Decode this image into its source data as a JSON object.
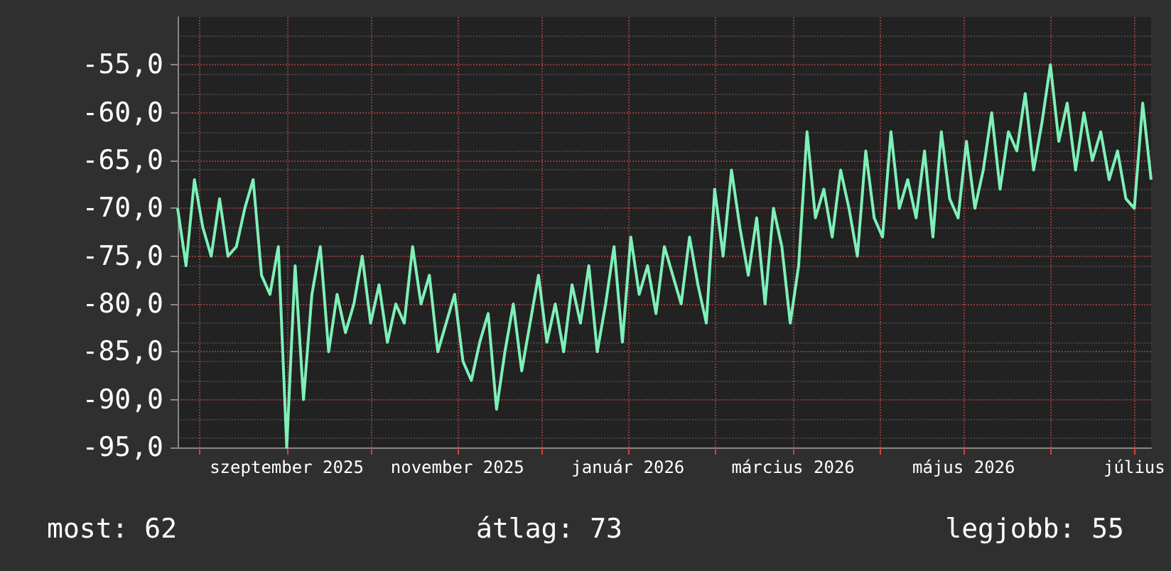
{
  "chart_data": {
    "type": "line",
    "color": "#7ef0b8",
    "grid": true,
    "marker": "none",
    "line_style": "solid",
    "xlim": [
      "2025-07-24",
      "2026-07-07"
    ],
    "xticks": [
      {
        "value": "2025-08-01",
        "label": null
      },
      {
        "value": "2025-09-01",
        "label": "szeptember 2025"
      },
      {
        "value": "2025-10-01",
        "label": null
      },
      {
        "value": "2025-11-01",
        "label": "november 2025"
      },
      {
        "value": "2025-12-01",
        "label": null
      },
      {
        "value": "2026-01-01",
        "label": "január 2026"
      },
      {
        "value": "2026-02-01",
        "label": null
      },
      {
        "value": "2026-03-01",
        "label": "március 2026"
      },
      {
        "value": "2026-04-01",
        "label": null
      },
      {
        "value": "2026-05-01",
        "label": "május 2026"
      },
      {
        "value": "2026-06-01",
        "label": null
      },
      {
        "value": "2026-07-01",
        "label": "július"
      }
    ],
    "ylim": [
      -95,
      -50
    ],
    "yticks": [
      {
        "value": -95,
        "label": "-95,0"
      },
      {
        "value": -90,
        "label": "-90,0"
      },
      {
        "value": -85,
        "label": "-85,0"
      },
      {
        "value": -80,
        "label": "-80,0"
      },
      {
        "value": -75,
        "label": "-75,0"
      },
      {
        "value": -70,
        "label": "-70,0"
      },
      {
        "value": -65,
        "label": "-65,0"
      },
      {
        "value": -60,
        "label": "-60,0"
      },
      {
        "value": -55,
        "label": "-55,0"
      }
    ],
    "annotations": [
      "most: 62",
      "átlag: 73",
      "legjobb: 55"
    ],
    "x": [
      "2025-07-24",
      "2025-07-27",
      "2025-07-30",
      "2025-08-02",
      "2025-08-05",
      "2025-08-08",
      "2025-08-11",
      "2025-08-14",
      "2025-08-17",
      "2025-08-20",
      "2025-08-23",
      "2025-08-26",
      "2025-08-29",
      "2025-09-01",
      "2025-09-04",
      "2025-09-07",
      "2025-09-10",
      "2025-09-13",
      "2025-09-16",
      "2025-09-19",
      "2025-09-22",
      "2025-09-25",
      "2025-09-28",
      "2025-10-01",
      "2025-10-04",
      "2025-10-07",
      "2025-10-10",
      "2025-10-13",
      "2025-10-16",
      "2025-10-19",
      "2025-10-22",
      "2025-10-25",
      "2025-10-28",
      "2025-10-31",
      "2025-11-03",
      "2025-11-06",
      "2025-11-09",
      "2025-11-12",
      "2025-11-15",
      "2025-11-18",
      "2025-11-21",
      "2025-11-24",
      "2025-11-27",
      "2025-11-30",
      "2025-12-03",
      "2025-12-06",
      "2025-12-09",
      "2025-12-12",
      "2025-12-15",
      "2025-12-18",
      "2025-12-21",
      "2025-12-24",
      "2025-12-27",
      "2025-12-30",
      "2026-01-02",
      "2026-01-05",
      "2026-01-08",
      "2026-01-11",
      "2026-01-14",
      "2026-01-17",
      "2026-01-20",
      "2026-01-23",
      "2026-01-26",
      "2026-01-29",
      "2026-02-01",
      "2026-02-04",
      "2026-02-07",
      "2026-02-10",
      "2026-02-13",
      "2026-02-16",
      "2026-02-19",
      "2026-02-22",
      "2026-02-25",
      "2026-02-28",
      "2026-03-03",
      "2026-03-06",
      "2026-03-09",
      "2026-03-12",
      "2026-03-15",
      "2026-03-18",
      "2026-03-21",
      "2026-03-24",
      "2026-03-27",
      "2026-03-30",
      "2026-04-02",
      "2026-04-05",
      "2026-04-08",
      "2026-04-11",
      "2026-04-14",
      "2026-04-17",
      "2026-04-20",
      "2026-04-23",
      "2026-04-26",
      "2026-04-29",
      "2026-05-02",
      "2026-05-05",
      "2026-05-08",
      "2026-05-11",
      "2026-05-14",
      "2026-05-17",
      "2026-05-20",
      "2026-05-23",
      "2026-05-26",
      "2026-05-29",
      "2026-06-01",
      "2026-06-04",
      "2026-06-07",
      "2026-06-10",
      "2026-06-13",
      "2026-06-16",
      "2026-06-19",
      "2026-06-22",
      "2026-06-25",
      "2026-06-28",
      "2026-07-01",
      "2026-07-04",
      "2026-07-07"
    ],
    "values": [
      -70,
      -76,
      -67,
      -72,
      -75,
      -69,
      -75,
      -74,
      -70,
      -67,
      -77,
      -79,
      -74,
      -95,
      -76,
      -90,
      -79,
      -74,
      -85,
      -79,
      -83,
      -80,
      -75,
      -82,
      -78,
      -84,
      -80,
      -82,
      -74,
      -80,
      -77,
      -85,
      -82,
      -79,
      -86,
      -88,
      -84,
      -81,
      -91,
      -85,
      -80,
      -87,
      -82,
      -77,
      -84,
      -80,
      -85,
      -78,
      -82,
      -76,
      -85,
      -80,
      -74,
      -84,
      -73,
      -79,
      -76,
      -81,
      -74,
      -77,
      -80,
      -73,
      -78,
      -82,
      -68,
      -75,
      -66,
      -72,
      -77,
      -71,
      -80,
      -70,
      -74,
      -82,
      -76,
      -62,
      -71,
      -68,
      -73,
      -66,
      -70,
      -75,
      -64,
      -71,
      -73,
      -62,
      -70,
      -67,
      -71,
      -64,
      -73,
      -62,
      -69,
      -71,
      -63,
      -70,
      -66,
      -60,
      -68,
      -62,
      -64,
      -58,
      -66,
      -61,
      -55,
      -63,
      -59,
      -66,
      -60,
      -65,
      -62,
      -67,
      -64,
      -69,
      -70,
      -59,
      -67
    ]
  }
}
